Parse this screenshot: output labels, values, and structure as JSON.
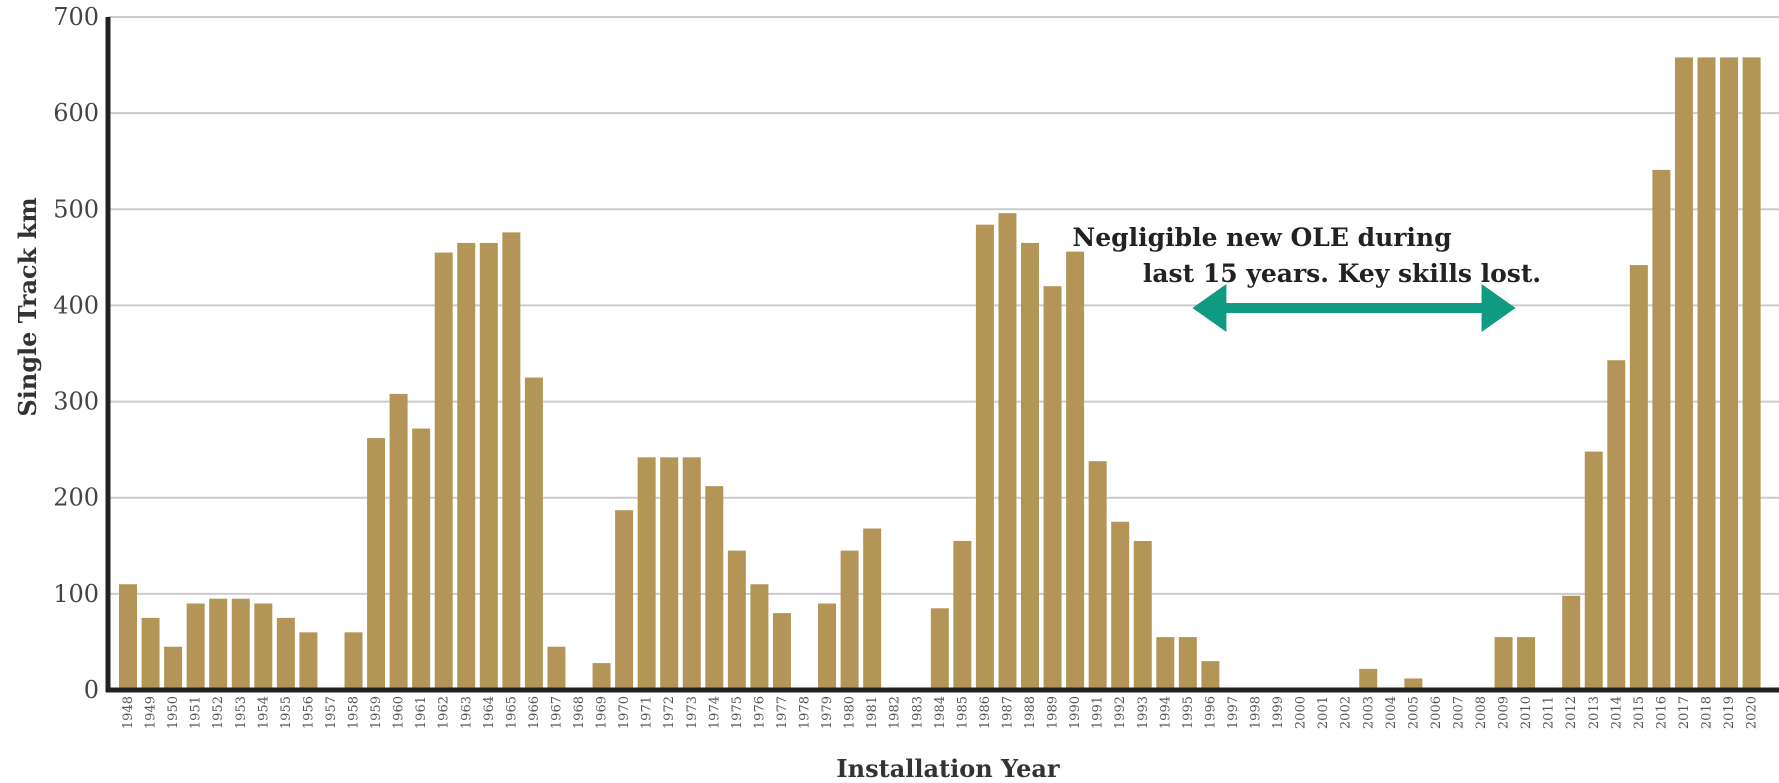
{
  "chart_data": {
    "type": "bar",
    "title": "",
    "xlabel": "Installation Year",
    "ylabel": "Single Track km",
    "ylim": [
      0,
      700
    ],
    "yticks": [
      0,
      100,
      200,
      300,
      400,
      500,
      600,
      700
    ],
    "grid": true,
    "colors": {
      "bar": "#b39657",
      "annotation_arrow": "#0e9b82",
      "grid": "#cccccc",
      "axis": "#222222"
    },
    "categories": [
      "1948",
      "1949",
      "1950",
      "1951",
      "1952",
      "1953",
      "1954",
      "1955",
      "1956",
      "1957",
      "1958",
      "1959",
      "1960",
      "1961",
      "1962",
      "1963",
      "1964",
      "1965",
      "1966",
      "1967",
      "1968",
      "1969",
      "1970",
      "1971",
      "1972",
      "1973",
      "1974",
      "1975",
      "1976",
      "1977",
      "1978",
      "1979",
      "1980",
      "1981",
      "1982",
      "1983",
      "1984",
      "1985",
      "1986",
      "1987",
      "1988",
      "1989",
      "1990",
      "1991",
      "1992",
      "1993",
      "1994",
      "1995",
      "1996",
      "1997",
      "1998",
      "1999",
      "2000",
      "2001",
      "2002",
      "2003",
      "2004",
      "2005",
      "2006",
      "2007",
      "2008",
      "2009",
      "2010",
      "2011",
      "2012",
      "2013",
      "2014",
      "2015",
      "2016",
      "2017",
      "2018",
      "2019",
      "2020"
    ],
    "values": [
      110,
      75,
      45,
      90,
      95,
      95,
      90,
      75,
      60,
      0,
      60,
      262,
      308,
      272,
      455,
      465,
      465,
      476,
      325,
      45,
      0,
      28,
      187,
      242,
      242,
      242,
      212,
      145,
      110,
      80,
      0,
      90,
      145,
      168,
      0,
      0,
      85,
      155,
      484,
      496,
      465,
      420,
      456,
      238,
      175,
      155,
      55,
      55,
      30,
      0,
      0,
      0,
      0,
      0,
      0,
      22,
      0,
      12,
      0,
      0,
      0,
      55,
      55,
      0,
      98,
      248,
      343,
      442,
      541,
      658,
      658,
      658,
      658
    ],
    "annotation": {
      "lines": [
        "Negligible new OLE during",
        "last 15 years. Key skills lost."
      ],
      "arrow": "double-headed",
      "arrow_start": "1996",
      "arrow_end": "2009",
      "arrow_value": 390
    }
  }
}
